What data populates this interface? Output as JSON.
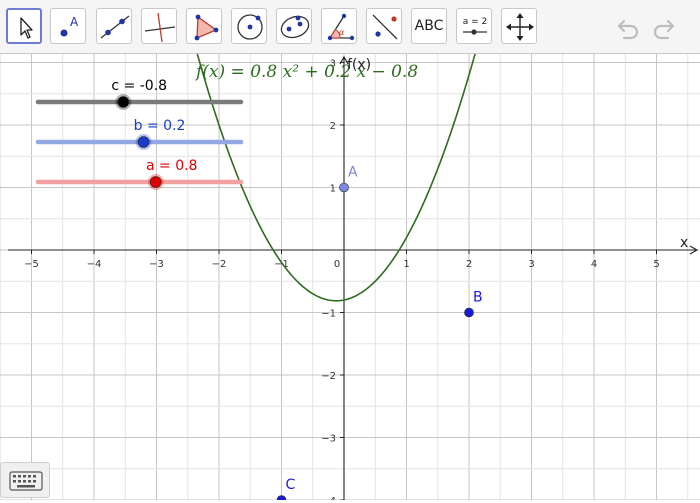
{
  "toolbar": {
    "tools": [
      {
        "name": "move-tool",
        "icon": "cursor-arrow-icon",
        "selected": true
      },
      {
        "name": "point-tool",
        "icon": "point-A-icon",
        "label": "A"
      },
      {
        "name": "line-tool",
        "icon": "line-through-points-icon"
      },
      {
        "name": "perpendicular-line-tool",
        "icon": "perpendicular-line-icon"
      },
      {
        "name": "polygon-tool",
        "icon": "polygon-icon"
      },
      {
        "name": "circle-center-point-tool",
        "icon": "circle-center-point-icon"
      },
      {
        "name": "conic-ellipse-tool",
        "icon": "ellipse-icon"
      },
      {
        "name": "angle-tool",
        "icon": "angle-icon",
        "label": "α"
      },
      {
        "name": "reflect-tool",
        "icon": "reflect-about-line-icon"
      },
      {
        "name": "text-tool",
        "icon": "text-icon",
        "label": "ABC"
      },
      {
        "name": "slider-tool",
        "icon": "slider-icon",
        "label": "a = 2"
      },
      {
        "name": "move-graphics-view-tool",
        "icon": "move-arrows-icon"
      }
    ],
    "undo_icon": "undo-icon",
    "redo_icon": "redo-icon"
  },
  "sliders": [
    {
      "name": "c",
      "label": "c = -0.8",
      "value": -0.8,
      "min": -5,
      "max": 5,
      "color": "#000000",
      "track_color": "#7a7a7a"
    },
    {
      "name": "b",
      "label": "b = 0.2",
      "value": 0.2,
      "min": -5,
      "max": 5,
      "color": "#1a3cc8",
      "track_color": "#93a7e3"
    },
    {
      "name": "a",
      "label": "a = 0.8",
      "value": 0.8,
      "min": -5,
      "max": 5,
      "color": "#e00000",
      "track_color": "#f2a0a0"
    }
  ],
  "function": {
    "formula_text": "f(x)  =  0.8 x² + 0.2 x − 0.8",
    "a": 0.8,
    "b": 0.2,
    "c": -0.8,
    "color": "#2e6b1f"
  },
  "axes": {
    "x_label": "x",
    "y_label": "f(x)",
    "x_range": [
      -5.5,
      5.6
    ],
    "y_range": [
      -4.9,
      3.9
    ],
    "x_ticks": [
      "−5",
      "−4",
      "−3",
      "−2",
      "−1",
      "0",
      "1",
      "2",
      "3",
      "4",
      "5"
    ],
    "y_ticks_pos": [
      "1",
      "2",
      "3"
    ],
    "y_ticks_neg": [
      "−1",
      "−2",
      "−3",
      "−4"
    ]
  },
  "points": [
    {
      "name": "A",
      "x": 0,
      "y": 1,
      "color": "#7e86e0",
      "label_color": "#7e86e0"
    },
    {
      "name": "B",
      "x": 2,
      "y": -1,
      "color": "#1a1ad8",
      "label_color": "#1a1ad8"
    },
    {
      "name": "C",
      "x": -1,
      "y": -4,
      "color": "#1a1ad8",
      "label_color": "#1a1ad8"
    }
  ],
  "keyboard_icon": "keyboard-icon"
}
